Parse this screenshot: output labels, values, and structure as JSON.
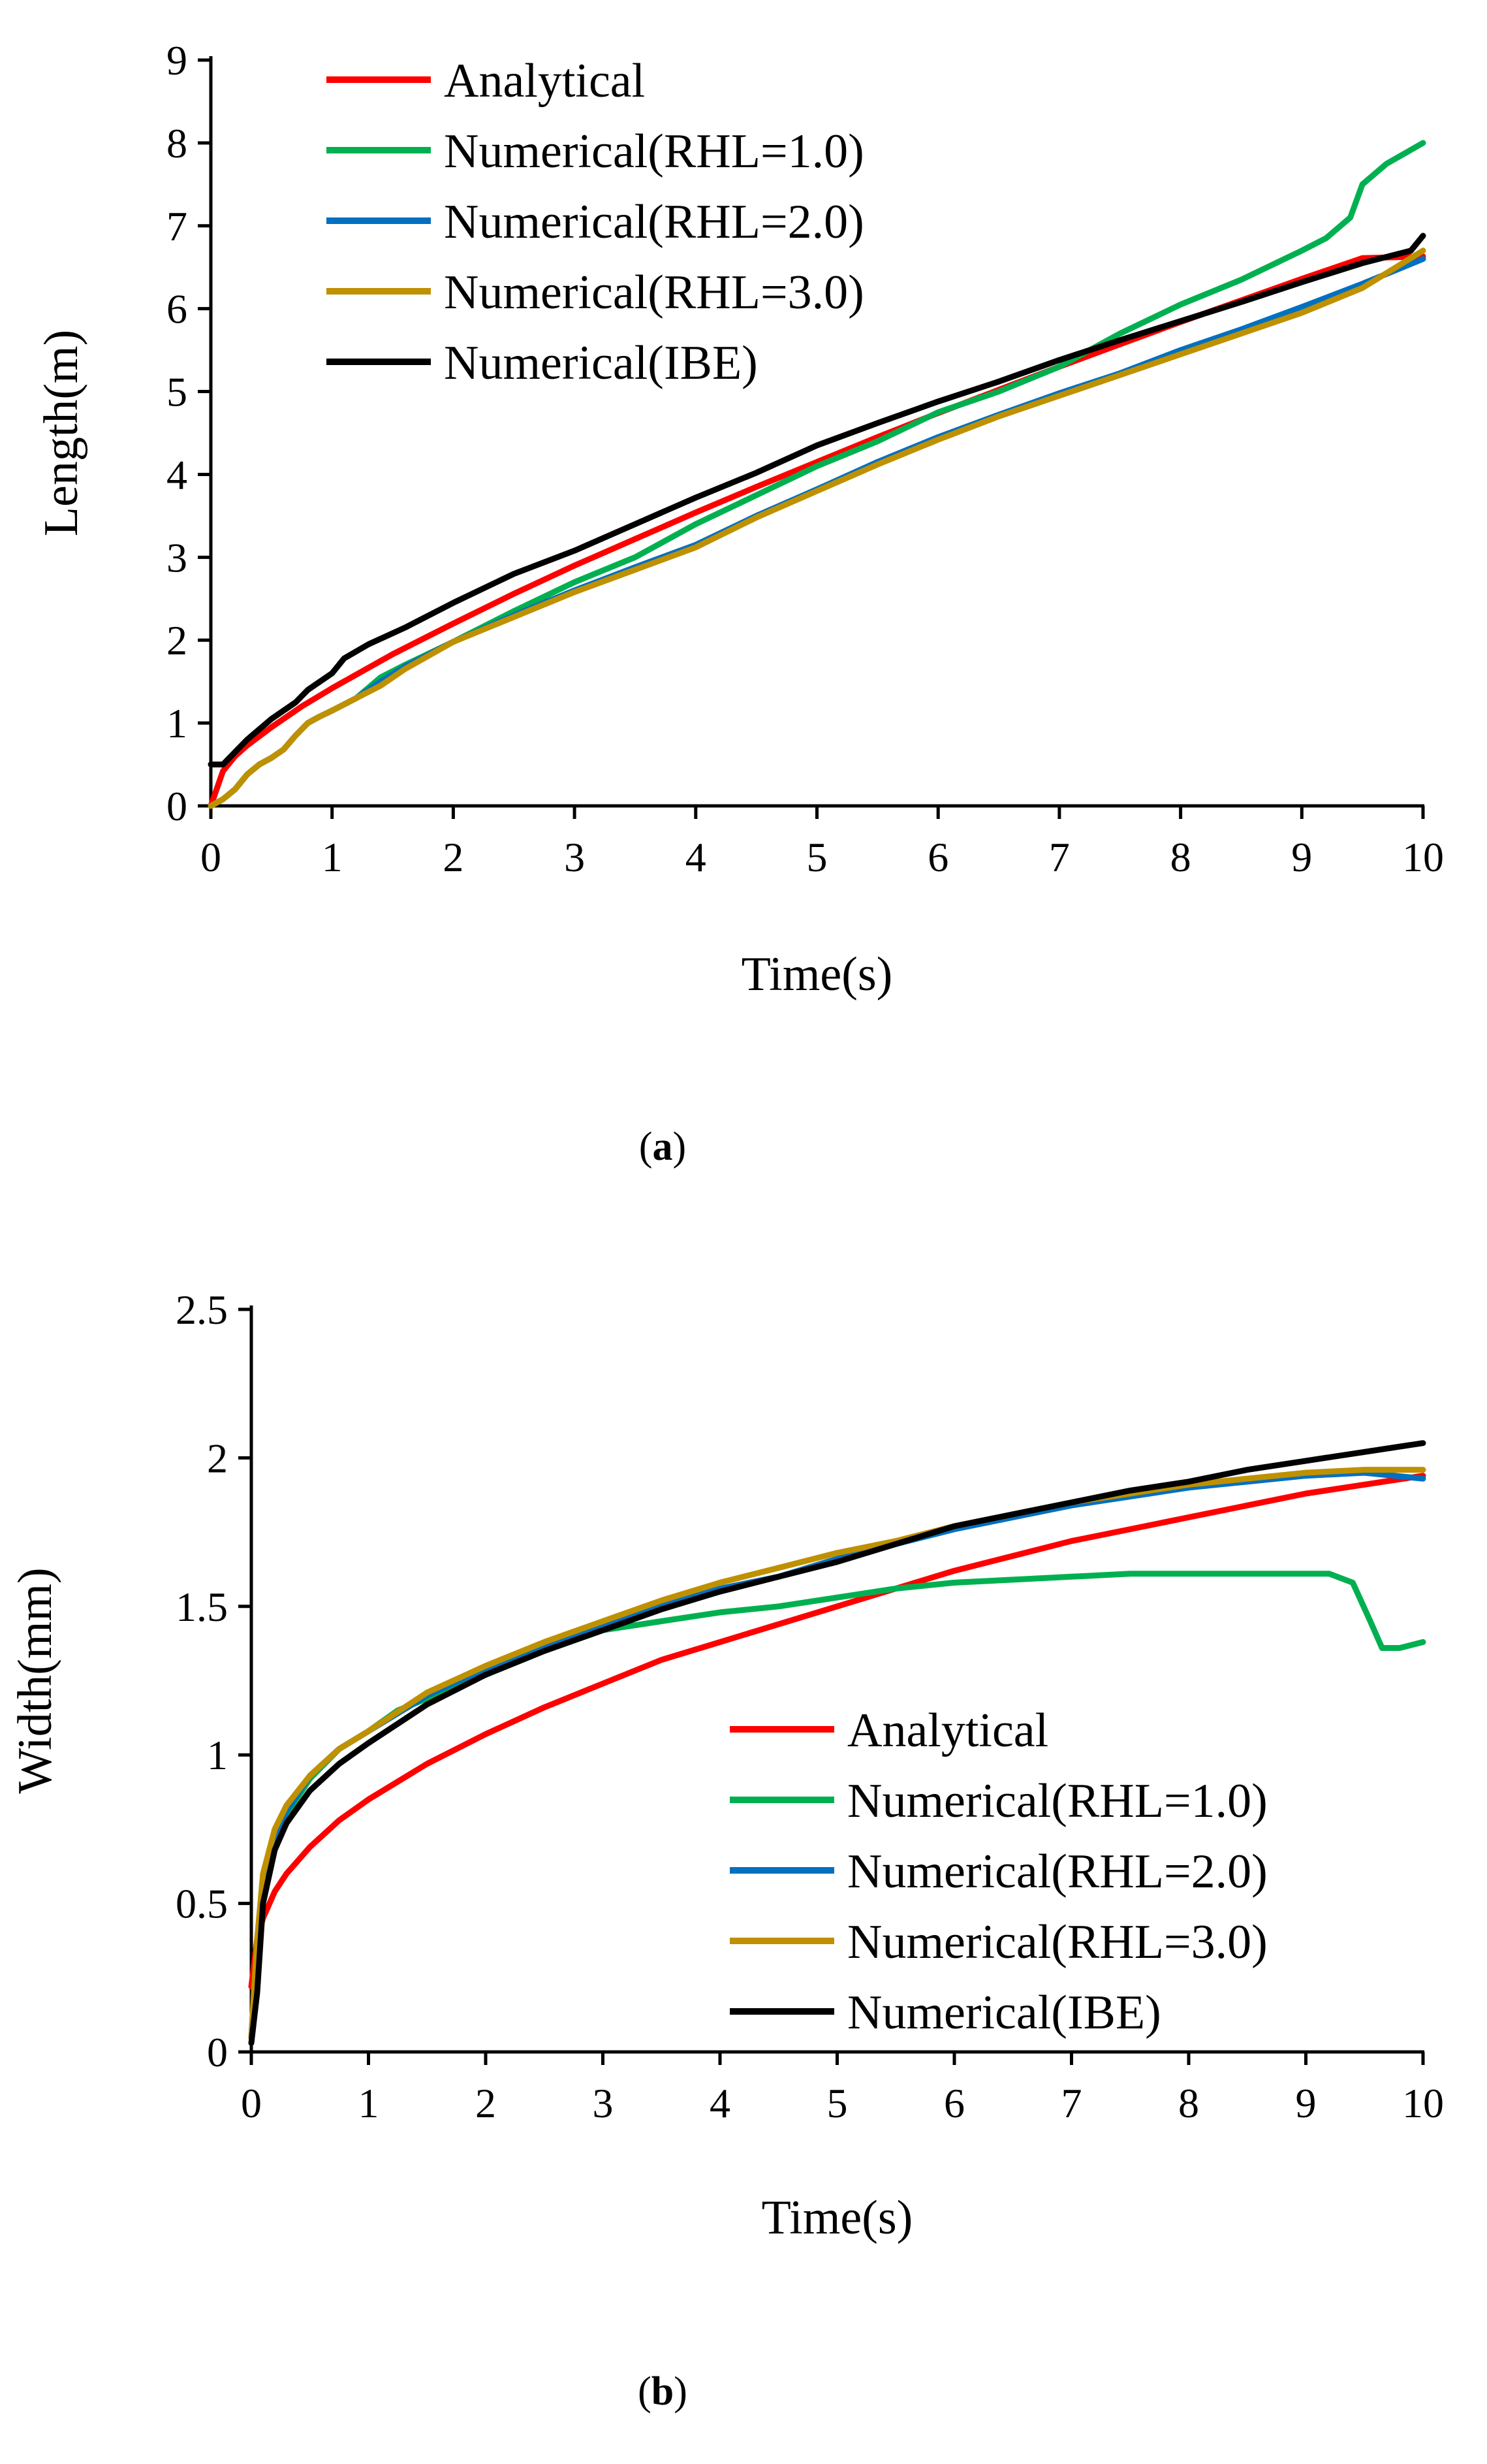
{
  "chart_data": [
    {
      "panel": "a",
      "type": "line",
      "xlabel": "Time(s)",
      "ylabel": "Length(m)",
      "xlim": [
        0,
        10
      ],
      "ylim": [
        0,
        9
      ],
      "xticks": [
        0,
        1,
        2,
        3,
        4,
        5,
        6,
        7,
        8,
        9,
        10
      ],
      "yticks": [
        0,
        1,
        2,
        3,
        4,
        5,
        6,
        7,
        8,
        9
      ],
      "ytick_labels": [
        "0",
        "1",
        "2",
        "3",
        "4",
        "5",
        "6",
        "7",
        "8",
        "9"
      ],
      "legend_position": "top-left",
      "caption_prefix": "(",
      "caption_letter": "a",
      "caption_suffix": ")",
      "series": [
        {
          "name": "Analytical",
          "color": "#ff0000",
          "x": [
            0,
            0.1,
            0.2,
            0.3,
            0.5,
            0.75,
            1,
            1.5,
            2,
            2.5,
            3,
            3.5,
            4,
            4.5,
            5,
            5.5,
            6,
            6.5,
            7,
            7.5,
            8,
            8.5,
            9,
            9.5,
            10
          ],
          "y": [
            0,
            0.42,
            0.6,
            0.73,
            0.95,
            1.2,
            1.42,
            1.83,
            2.2,
            2.56,
            2.9,
            3.22,
            3.54,
            3.85,
            4.15,
            4.45,
            4.74,
            5.02,
            5.3,
            5.57,
            5.84,
            6.1,
            6.36,
            6.61,
            6.63
          ]
        },
        {
          "name": "Numerical(RHL=1.0)",
          "color": "#00b050",
          "x": [
            0,
            0.1,
            0.2,
            0.3,
            0.4,
            0.5,
            0.6,
            0.7,
            0.8,
            0.9,
            1.0,
            1.2,
            1.4,
            1.6,
            2,
            2.5,
            3,
            3.5,
            4,
            4.5,
            5,
            5.5,
            6,
            6.5,
            7,
            7.5,
            8,
            8.5,
            9,
            9.2,
            9.4,
            9.5,
            9.7,
            10
          ],
          "y": [
            0,
            0.08,
            0.2,
            0.38,
            0.5,
            0.58,
            0.68,
            0.85,
            1.0,
            1.08,
            1.15,
            1.3,
            1.55,
            1.7,
            1.98,
            2.35,
            2.7,
            3.0,
            3.4,
            3.75,
            4.1,
            4.4,
            4.75,
            5.0,
            5.3,
            5.7,
            6.05,
            6.35,
            6.7,
            6.85,
            7.1,
            7.5,
            7.75,
            8.0
          ]
        },
        {
          "name": "Numerical(RHL=2.0)",
          "color": "#0070c0",
          "x": [
            0,
            0.1,
            0.2,
            0.3,
            0.4,
            0.5,
            0.6,
            0.7,
            0.8,
            0.9,
            1.0,
            1.2,
            1.4,
            1.6,
            2,
            2.5,
            3,
            3.5,
            4,
            4.5,
            5,
            5.5,
            6,
            6.5,
            7,
            7.5,
            8,
            8.5,
            9,
            9.5,
            10
          ],
          "y": [
            0,
            0.08,
            0.2,
            0.38,
            0.5,
            0.58,
            0.68,
            0.85,
            1.0,
            1.08,
            1.15,
            1.3,
            1.5,
            1.68,
            1.98,
            2.3,
            2.6,
            2.88,
            3.15,
            3.5,
            3.82,
            4.15,
            4.45,
            4.72,
            4.98,
            5.22,
            5.5,
            5.75,
            6.02,
            6.3,
            6.6
          ]
        },
        {
          "name": "Numerical(RHL=3.0)",
          "color": "#bf9000",
          "x": [
            0,
            0.1,
            0.2,
            0.3,
            0.4,
            0.5,
            0.6,
            0.7,
            0.8,
            0.9,
            1.0,
            1.2,
            1.4,
            1.6,
            2,
            2.5,
            3,
            3.5,
            4,
            4.5,
            5,
            5.5,
            6,
            6.5,
            7,
            7.5,
            8,
            8.5,
            9,
            9.5,
            10
          ],
          "y": [
            0,
            0.08,
            0.2,
            0.38,
            0.5,
            0.58,
            0.68,
            0.85,
            1.0,
            1.08,
            1.15,
            1.3,
            1.45,
            1.65,
            1.98,
            2.28,
            2.58,
            2.85,
            3.12,
            3.48,
            3.8,
            4.12,
            4.42,
            4.7,
            4.95,
            5.2,
            5.45,
            5.7,
            5.95,
            6.25,
            6.7
          ]
        },
        {
          "name": "Numerical(IBE)",
          "color": "#000000",
          "x": [
            0,
            0.1,
            0.2,
            0.3,
            0.5,
            0.7,
            0.8,
            1.0,
            1.1,
            1.3,
            1.6,
            2,
            2.5,
            3,
            3.5,
            4,
            4.5,
            5,
            5.5,
            6,
            6.5,
            7,
            7.5,
            8,
            8.5,
            9,
            9.5,
            9.9,
            10
          ],
          "y": [
            0.5,
            0.5,
            0.65,
            0.8,
            1.05,
            1.25,
            1.4,
            1.6,
            1.78,
            1.95,
            2.15,
            2.45,
            2.8,
            3.08,
            3.4,
            3.72,
            4.02,
            4.35,
            4.62,
            4.88,
            5.12,
            5.38,
            5.62,
            5.85,
            6.08,
            6.32,
            6.55,
            6.7,
            6.88
          ]
        }
      ]
    },
    {
      "panel": "b",
      "type": "line",
      "xlabel": "Time(s)",
      "ylabel": "Width(mm)",
      "xlim": [
        0,
        10
      ],
      "ylim": [
        0,
        2.5
      ],
      "xticks": [
        0,
        1,
        2,
        3,
        4,
        5,
        6,
        7,
        8,
        9,
        10
      ],
      "yticks": [
        0,
        0.5,
        1,
        1.5,
        2,
        2.5
      ],
      "ytick_labels": [
        "0",
        "0.5",
        "1",
        "1.5",
        "2",
        "2.5"
      ],
      "legend_position": "bottom-right",
      "caption_prefix": "(",
      "caption_letter": "b",
      "caption_suffix": ")",
      "series": [
        {
          "name": "Analytical",
          "color": "#ff0000",
          "x": [
            0,
            0.05,
            0.1,
            0.2,
            0.3,
            0.5,
            0.75,
            1,
            1.5,
            2,
            2.5,
            3,
            3.5,
            4,
            4.5,
            5,
            5.5,
            6,
            6.5,
            7,
            7.5,
            8,
            8.5,
            9,
            9.5,
            10
          ],
          "y": [
            0.22,
            0.38,
            0.45,
            0.54,
            0.6,
            0.69,
            0.78,
            0.85,
            0.97,
            1.07,
            1.16,
            1.24,
            1.32,
            1.38,
            1.44,
            1.5,
            1.56,
            1.62,
            1.67,
            1.72,
            1.76,
            1.8,
            1.84,
            1.88,
            1.91,
            1.94
          ]
        },
        {
          "name": "Numerical(RHL=1.0)",
          "color": "#00b050",
          "x": [
            0,
            0.05,
            0.1,
            0.2,
            0.3,
            0.5,
            0.75,
            1,
            1.25,
            1.5,
            2,
            2.5,
            3,
            3.5,
            4,
            4.5,
            5,
            5.5,
            6,
            6.5,
            7,
            7.5,
            8,
            8.5,
            9,
            9.2,
            9.4,
            9.55,
            9.65,
            9.8,
            10
          ],
          "y": [
            0.05,
            0.35,
            0.55,
            0.7,
            0.8,
            0.92,
            1.02,
            1.08,
            1.15,
            1.19,
            1.27,
            1.35,
            1.42,
            1.45,
            1.48,
            1.5,
            1.53,
            1.56,
            1.58,
            1.59,
            1.6,
            1.61,
            1.61,
            1.61,
            1.61,
            1.61,
            1.58,
            1.45,
            1.36,
            1.36,
            1.38
          ]
        },
        {
          "name": "Numerical(RHL=2.0)",
          "color": "#0070c0",
          "x": [
            0,
            0.05,
            0.1,
            0.2,
            0.3,
            0.5,
            0.75,
            1,
            1.5,
            2,
            2.5,
            3,
            3.5,
            4,
            4.5,
            5,
            5.5,
            6,
            6.5,
            7,
            7.5,
            8,
            8.5,
            9,
            9.5,
            10
          ],
          "y": [
            0.05,
            0.35,
            0.55,
            0.72,
            0.81,
            0.93,
            1.02,
            1.08,
            1.2,
            1.29,
            1.37,
            1.44,
            1.5,
            1.56,
            1.6,
            1.66,
            1.71,
            1.76,
            1.8,
            1.84,
            1.87,
            1.9,
            1.92,
            1.94,
            1.95,
            1.93
          ]
        },
        {
          "name": "Numerical(RHL=3.0)",
          "color": "#bf9000",
          "x": [
            0,
            0.05,
            0.1,
            0.2,
            0.3,
            0.5,
            0.75,
            1,
            1.5,
            2,
            2.5,
            3,
            3.5,
            4,
            4.5,
            5,
            5.5,
            6,
            6.5,
            7,
            7.5,
            8,
            8.5,
            9,
            9.5,
            10
          ],
          "y": [
            0.05,
            0.38,
            0.6,
            0.75,
            0.83,
            0.93,
            1.02,
            1.08,
            1.21,
            1.3,
            1.38,
            1.45,
            1.52,
            1.58,
            1.63,
            1.68,
            1.72,
            1.77,
            1.81,
            1.85,
            1.88,
            1.91,
            1.93,
            1.95,
            1.96,
            1.96
          ]
        },
        {
          "name": "Numerical(IBE)",
          "color": "#000000",
          "x": [
            0,
            0.05,
            0.1,
            0.2,
            0.3,
            0.5,
            0.75,
            1,
            1.5,
            2,
            2.5,
            3,
            3.5,
            4,
            4.5,
            5,
            5.5,
            6,
            6.5,
            7,
            7.5,
            8,
            8.5,
            9,
            9.5,
            10
          ],
          "y": [
            0.03,
            0.2,
            0.5,
            0.68,
            0.77,
            0.88,
            0.97,
            1.04,
            1.17,
            1.27,
            1.35,
            1.42,
            1.49,
            1.55,
            1.6,
            1.65,
            1.71,
            1.77,
            1.81,
            1.85,
            1.89,
            1.92,
            1.96,
            1.99,
            2.02,
            2.05
          ]
        }
      ]
    }
  ]
}
